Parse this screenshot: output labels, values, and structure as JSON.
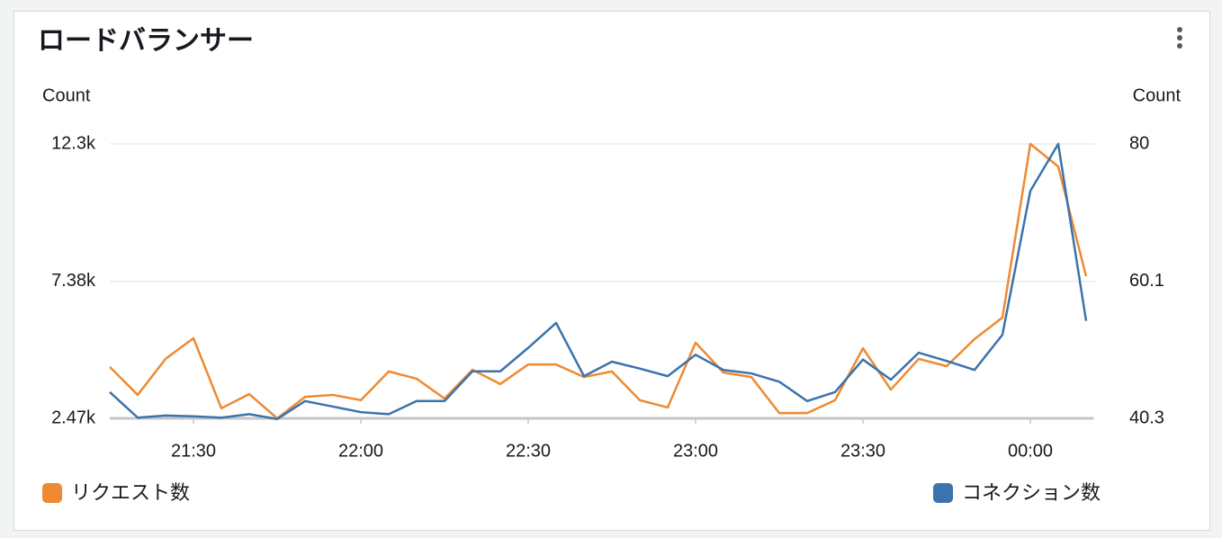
{
  "chart_data": {
    "type": "line",
    "title": "ロードバランサー",
    "ylabel": "Count",
    "y2label": "Count",
    "categories": [
      null,
      null,
      null,
      "21:30",
      null,
      null,
      null,
      null,
      null,
      "22:00",
      null,
      null,
      null,
      null,
      null,
      "22:30",
      null,
      null,
      null,
      null,
      null,
      "23:00",
      null,
      null,
      null,
      null,
      null,
      "23:30",
      null,
      null,
      null,
      null,
      null,
      "00:00",
      null,
      null
    ],
    "series": [
      {
        "name": "リクエスト数",
        "color": "#ee8a32",
        "axis": "y",
        "values": [
          4310,
          3310,
          4600,
          5340,
          2830,
          3340,
          2470,
          3240,
          3310,
          3120,
          4150,
          3890,
          3180,
          4210,
          3700,
          4400,
          4400,
          3950,
          4150,
          3120,
          2860,
          5180,
          4110,
          3950,
          2660,
          2660,
          3120,
          4980,
          3500,
          4600,
          4340,
          5310,
          6080,
          12300,
          11490,
          7560
        ]
      },
      {
        "name": "コネクション数",
        "color": "#3b73ad",
        "axis": "y2",
        "values": [
          44.1,
          40.4,
          40.7,
          40.6,
          40.4,
          40.9,
          40.2,
          42.8,
          42.0,
          41.2,
          40.9,
          42.8,
          42.8,
          47.1,
          47.1,
          50.5,
          54.1,
          46.4,
          48.5,
          47.5,
          46.4,
          49.5,
          47.3,
          46.8,
          45.6,
          42.8,
          44.1,
          48.8,
          45.9,
          49.8,
          48.6,
          47.3,
          52.4,
          73.2,
          80,
          54.4
        ]
      }
    ],
    "ylim": [
      2470,
      12300
    ],
    "yticks": [
      {
        "value": 2470,
        "label": "2.47k"
      },
      {
        "value": 7380,
        "label": "7.38k"
      },
      {
        "value": 12300,
        "label": "12.3k"
      }
    ],
    "y2lim": [
      40.3,
      80
    ],
    "y2ticks": [
      40.3,
      60.1,
      80
    ],
    "grid": true
  }
}
